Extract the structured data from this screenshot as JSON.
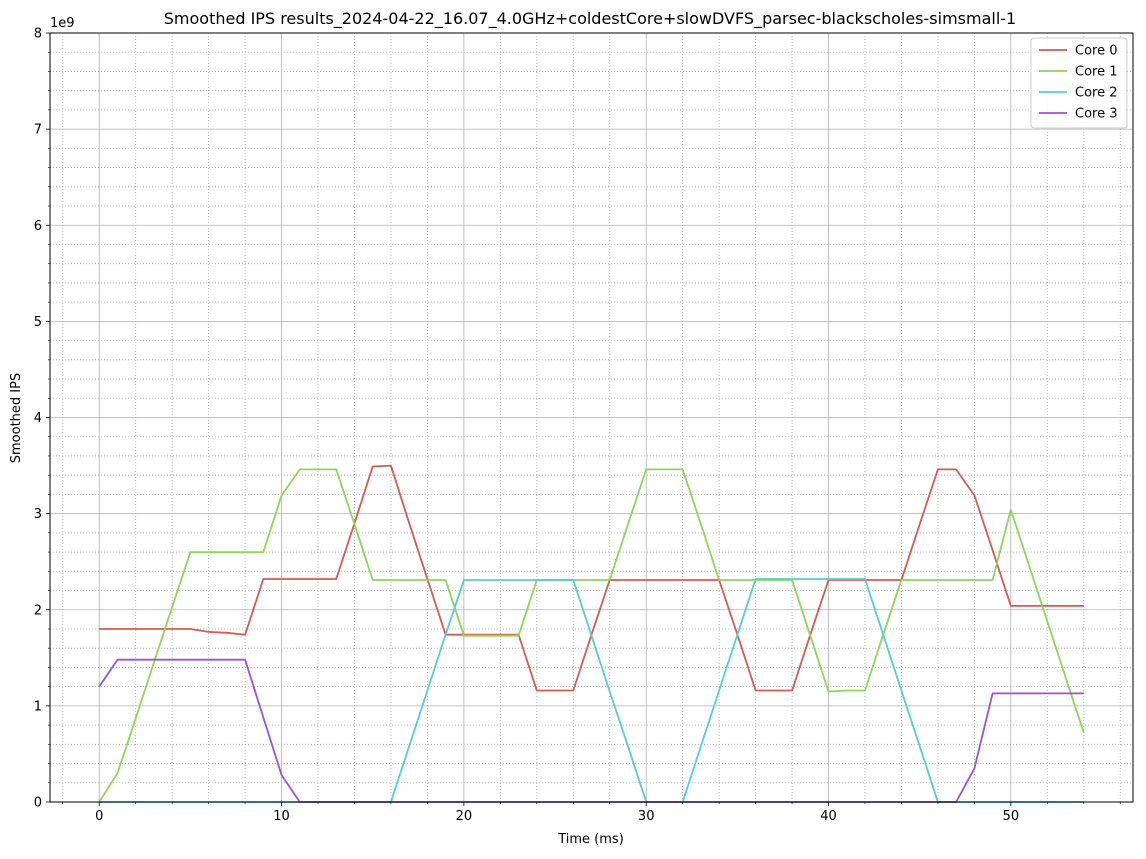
{
  "chart_data": {
    "type": "line",
    "title": "Smoothed IPS results_2024-04-22_16.07_4.0GHz+coldestCore+slowDVFS_parsec-blackscholes-simsmall-1",
    "xlabel": "Time (ms)",
    "ylabel": "Smoothed IPS",
    "y_scale_label": "1e9",
    "xlim": [
      -2.7,
      56.7
    ],
    "ylim": [
      0,
      8
    ],
    "x_ticks": [
      0,
      10,
      20,
      30,
      40,
      50
    ],
    "y_ticks": [
      0,
      1,
      2,
      3,
      4,
      5,
      6,
      7,
      8
    ],
    "grid": true,
    "minor_grid": true,
    "legend_position": "top-right",
    "series": [
      {
        "name": "Core 0",
        "color": "#d65a50",
        "x": [
          0,
          1,
          2,
          3,
          4,
          5,
          6,
          7,
          8,
          9,
          10,
          11,
          12,
          13,
          14,
          15,
          16,
          17,
          18,
          19,
          20,
          21,
          22,
          23,
          24,
          25,
          26,
          27,
          28,
          29,
          30,
          31,
          32,
          33,
          34,
          35,
          36,
          37,
          38,
          39,
          40,
          41,
          42,
          43,
          44,
          45,
          46,
          47,
          48,
          49,
          50,
          51,
          52,
          53,
          54
        ],
        "values": [
          1.8,
          1.8,
          1.8,
          1.8,
          1.8,
          1.8,
          1.77,
          1.76,
          1.74,
          2.32,
          2.32,
          2.32,
          2.32,
          2.32,
          2.9,
          3.49,
          3.5,
          2.9,
          2.32,
          1.74,
          1.74,
          1.74,
          1.74,
          1.74,
          1.16,
          1.16,
          1.16,
          1.74,
          2.31,
          2.31,
          2.31,
          2.31,
          2.31,
          2.31,
          2.31,
          1.74,
          1.16,
          1.16,
          1.16,
          1.74,
          2.31,
          2.31,
          2.31,
          2.31,
          2.31,
          2.89,
          3.46,
          3.46,
          3.19,
          2.62,
          2.04,
          2.04,
          2.04,
          2.04,
          2.04
        ]
      },
      {
        "name": "Core 1",
        "color": "#8cd65a",
        "x": [
          0,
          1,
          2,
          3,
          4,
          5,
          6,
          7,
          8,
          9,
          10,
          11,
          12,
          13,
          14,
          15,
          16,
          17,
          18,
          19,
          20,
          21,
          22,
          23,
          24,
          25,
          26,
          27,
          28,
          29,
          30,
          31,
          32,
          33,
          34,
          35,
          36,
          37,
          38,
          39,
          40,
          41,
          42,
          43,
          44,
          45,
          46,
          47,
          48,
          49,
          50,
          51,
          52,
          53,
          54
        ],
        "values": [
          0.0,
          0.3,
          0.87,
          1.45,
          2.03,
          2.6,
          2.6,
          2.6,
          2.6,
          2.6,
          3.19,
          3.46,
          3.46,
          3.46,
          2.89,
          2.31,
          2.31,
          2.31,
          2.31,
          2.31,
          1.73,
          1.73,
          1.73,
          1.73,
          2.31,
          2.31,
          2.31,
          2.31,
          2.31,
          2.89,
          3.46,
          3.46,
          3.46,
          2.89,
          2.31,
          2.31,
          2.31,
          2.31,
          2.31,
          1.73,
          1.15,
          1.16,
          1.16,
          1.74,
          2.31,
          2.31,
          2.31,
          2.31,
          2.31,
          2.31,
          3.04,
          2.46,
          1.88,
          1.3,
          0.72
        ]
      },
      {
        "name": "Core 2",
        "color": "#50d0d0",
        "x": [
          0,
          1,
          2,
          3,
          4,
          5,
          6,
          7,
          8,
          9,
          10,
          11,
          12,
          13,
          14,
          15,
          16,
          17,
          18,
          19,
          20,
          21,
          22,
          23,
          24,
          25,
          26,
          27,
          28,
          29,
          30,
          31,
          32,
          33,
          34,
          35,
          36,
          37,
          38,
          39,
          40,
          41,
          42,
          43,
          44,
          45,
          46,
          47,
          48,
          49,
          50,
          51,
          52,
          53,
          54
        ],
        "values": [
          0,
          0,
          0,
          0,
          0,
          0,
          0,
          0,
          0,
          0,
          0,
          0,
          0,
          0,
          0,
          0,
          0,
          0.58,
          1.16,
          1.74,
          2.31,
          2.31,
          2.31,
          2.31,
          2.31,
          2.31,
          2.31,
          1.73,
          1.15,
          0.58,
          0,
          0,
          0,
          0.58,
          1.16,
          1.74,
          2.32,
          2.32,
          2.32,
          2.32,
          2.32,
          2.32,
          2.32,
          1.74,
          1.16,
          0.58,
          0,
          0,
          0,
          0,
          0,
          0,
          0,
          0,
          0
        ]
      },
      {
        "name": "Core 3",
        "color": "#a050d6",
        "x": [
          0,
          1,
          2,
          3,
          4,
          5,
          6,
          7,
          8,
          9,
          10,
          11,
          12,
          13,
          14,
          15,
          16,
          17,
          18,
          19,
          20,
          21,
          22,
          23,
          24,
          25,
          26,
          27,
          28,
          29,
          30,
          31,
          32,
          33,
          34,
          35,
          36,
          37,
          38,
          39,
          40,
          41,
          42,
          43,
          44,
          45,
          46,
          47,
          48,
          49,
          50,
          51,
          52,
          53,
          54
        ],
        "values": [
          1.2,
          1.48,
          1.48,
          1.48,
          1.48,
          1.48,
          1.48,
          1.48,
          1.48,
          0.88,
          0.28,
          0,
          0,
          0,
          0,
          0,
          0,
          0,
          0,
          0,
          0,
          0,
          0,
          0,
          0,
          0,
          0,
          0,
          0,
          0,
          0,
          0,
          0,
          0,
          0,
          0,
          0,
          0,
          0,
          0,
          0,
          0,
          0,
          0,
          0,
          0,
          0,
          0,
          0.35,
          1.13,
          1.13,
          1.13,
          1.13,
          1.13,
          1.13
        ]
      }
    ]
  }
}
